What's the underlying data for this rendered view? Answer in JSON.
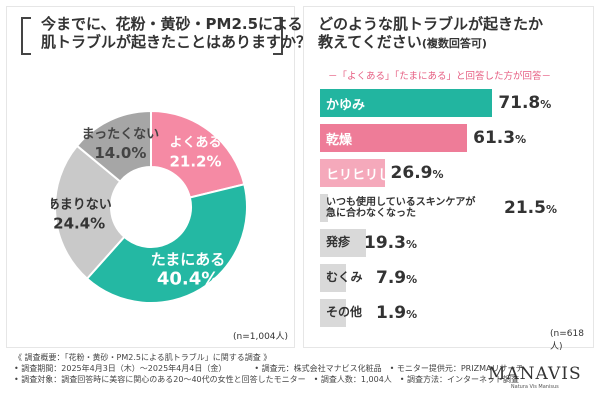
{
  "left": {
    "title_line1": "今までに、花粉・黄砂・PM2.5による",
    "title_line2": "肌トラブルが起きたことはありますか？",
    "n": "(n=1,004人)"
  },
  "right": {
    "title_line1": "どのような肌トラブルが起きたか",
    "title_line2": "教えてください",
    "title_sub": "(複数回答可)",
    "answer_note": "－「よくある」「たまにある」と回答した方が回答－",
    "n": "(n=618人)"
  },
  "chart_data": [
    {
      "type": "pie",
      "categories": [
        "よくある",
        "たまにある",
        "あまりない",
        "まったくない"
      ],
      "values": [
        21.2,
        40.4,
        24.4,
        14.0
      ],
      "colors": [
        "#f58aa4",
        "#24b8a3",
        "#c9c9c9",
        "#a6a6a6"
      ],
      "unit": "%"
    },
    {
      "type": "bar",
      "categories": [
        "かゆみ",
        "乾燥",
        "ヒリヒリした痛み",
        "いつも使用しているスキンケアが急に合わなくなった",
        "発疹",
        "むくみ",
        "その他"
      ],
      "category_lines": [
        [
          "かゆみ"
        ],
        [
          "乾燥"
        ],
        [
          "ヒリヒリした痛み"
        ],
        [
          "いつも使用しているスキンケアが",
          "急に合わなくなった"
        ],
        [
          "発疹"
        ],
        [
          "むくみ"
        ],
        [
          "その他"
        ]
      ],
      "values": [
        71.8,
        61.3,
        26.9,
        21.5,
        19.3,
        7.9,
        1.9
      ],
      "bar_styles": [
        "teal",
        "pink",
        "lpink",
        "gray",
        "gray",
        "gray",
        "gray"
      ],
      "unit": "%"
    }
  ],
  "footer": {
    "line1": "《 調査概要：「花粉・黄砂・PM2.5による肌トラブル」に関する調査 》",
    "line2": "• 調査期間：2025年4月3日（木）～2025年4月4日（金）　　　　• 調査元：株式会社マナビス化粧品　• モニター提供元：PRIZMAリサーチ",
    "line3": "• 調査対象：調査回答時に美容に関心のある20～40代の女性と回答したモニター　• 調査人数：1,004人　• 調査方法：インターネット調査"
  },
  "brand": {
    "name": "MANAVIS",
    "tagline": "Natura Vis Manisus"
  }
}
